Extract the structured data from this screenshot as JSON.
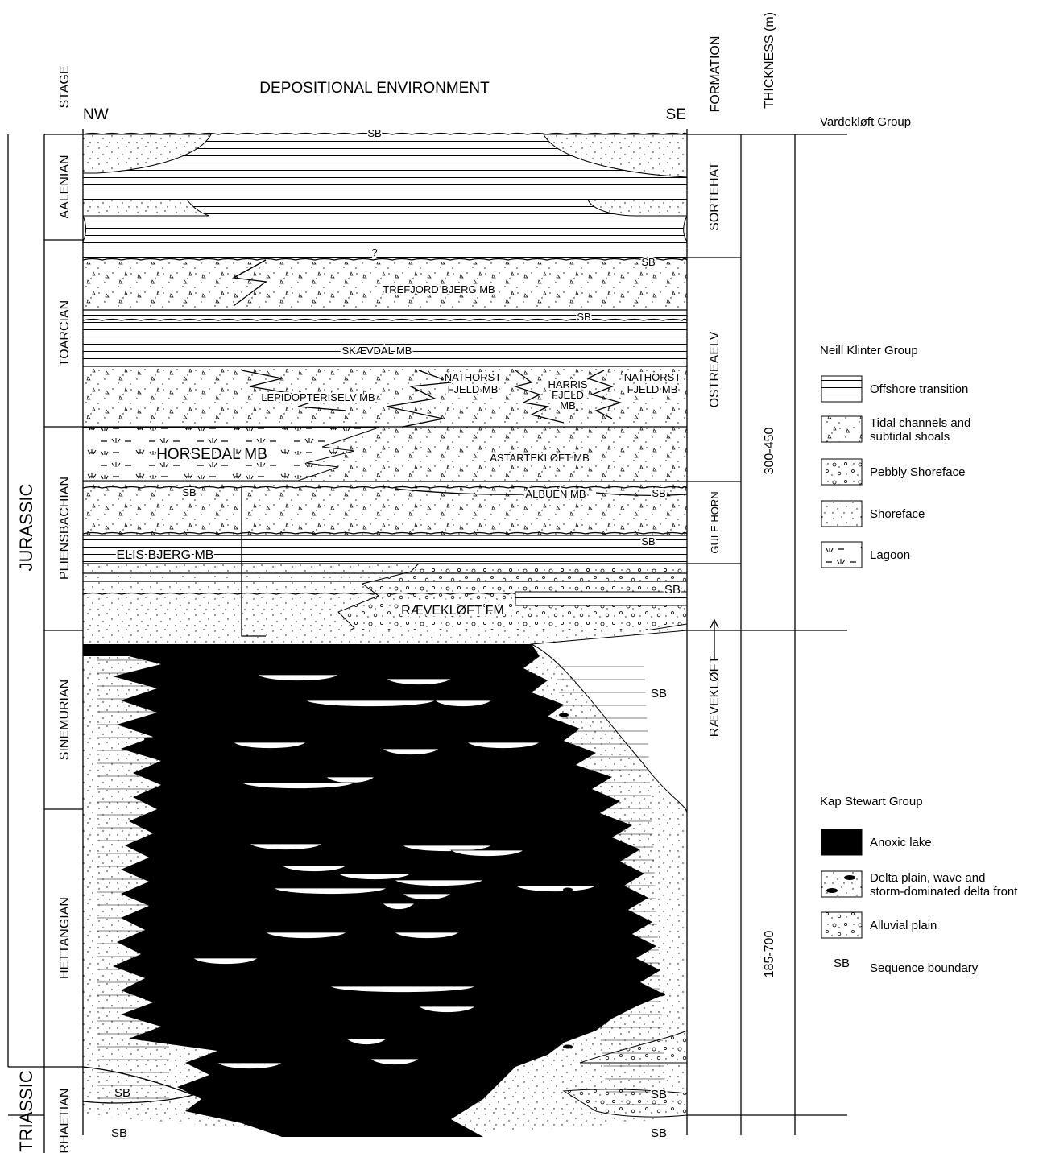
{
  "headers": {
    "stage": "STAGE",
    "environment": "DEPOSITIONAL ENVIRONMENT",
    "nw": "NW",
    "se": "SE",
    "formation": "FORMATION",
    "thickness": "THICKNESS (m)"
  },
  "periods": [
    "JURASSIC",
    "TRIASSIC"
  ],
  "stages": [
    "AALENIAN",
    "TOARCIAN",
    "PLIENSBACHIAN",
    "SINEMURIAN",
    "HETTANGIAN",
    "RHAETIAN"
  ],
  "formations": [
    "SORTEHAT",
    "OSTREAELV",
    "GULE HORN",
    "RÆVEKLØFT"
  ],
  "thicknesses": [
    "300-450",
    "185-700"
  ],
  "groups": [
    "Vardekløft Group",
    "Neill Klinter Group",
    "Kap Stewart Group"
  ],
  "units": {
    "trefjord": "TREFJORD BJERG MB",
    "skaevdal": "SKÆVDAL MB",
    "lepidopteriselv": "LEPIDOPTERISELV MB",
    "nathorst_west": [
      "NATHORST",
      "FJELD MB"
    ],
    "harris": [
      "HARRIS",
      "FJELD",
      "MB"
    ],
    "nathorst_east": [
      "NATHORST",
      "FJELD MB"
    ],
    "horsedal": "HORSEDAL MB",
    "astartekloft": "ASTARTEKLØFT MB",
    "albuen": "ALBUEN MB",
    "elis_bjerg": "ELIS BJERG MB",
    "raevekloft": "RÆVEKLØFT FM",
    "question": "?"
  },
  "sb_labels": [
    "SB",
    "SB",
    "SB",
    "SB",
    "SB",
    "SB",
    "SB",
    "SB",
    "SB",
    "SB",
    "SB",
    "SB"
  ],
  "legend": [
    {
      "label": [
        "Offshore transition"
      ]
    },
    {
      "label": [
        "Tidal channels and",
        "subtidal shoals"
      ]
    },
    {
      "label": [
        "Pebbly Shoreface"
      ]
    },
    {
      "label": [
        "Shoreface"
      ]
    },
    {
      "label": [
        "Lagoon"
      ]
    },
    {
      "label": [
        "Anoxic lake"
      ]
    },
    {
      "label": [
        "Delta plain, wave and",
        "storm-dominated delta front"
      ]
    },
    {
      "label": [
        "Alluvial plain"
      ]
    },
    {
      "symbol": "SB",
      "label": [
        "Sequence boundary"
      ]
    }
  ]
}
